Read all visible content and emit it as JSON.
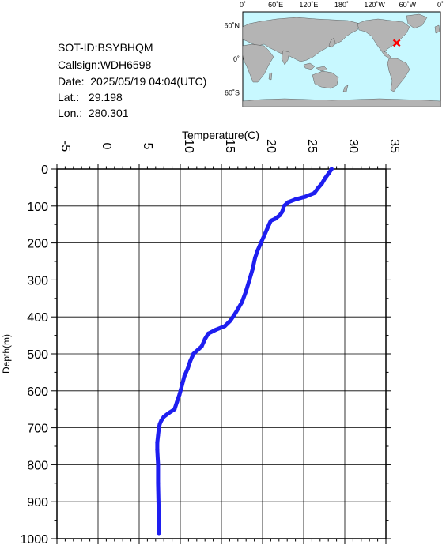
{
  "info": {
    "sot_id": "SOT-ID:BSYBHQM",
    "callsign": "Callsign:WDH6598",
    "date": "Date:  2025/05/19 04:04(UTC)",
    "lat": "Lat.:   29.198",
    "lon": "Lon.:  280.301"
  },
  "map": {
    "top_labels": [
      "0˚",
      "60˚E",
      "120˚E",
      "180˚",
      "120˚W",
      "60˚W",
      "0˚"
    ],
    "left_labels": [
      "60˚N",
      "0˚",
      "60˚S"
    ],
    "ocean_color": "#c8f8ff",
    "land_color": "#b4b4b4",
    "marker_color": "#ff0000",
    "marker": {
      "lon": 280.301,
      "lat": 29.198
    }
  },
  "chart_data": {
    "type": "line",
    "title": "",
    "xlabel": "Temperature(C)",
    "ylabel": "Depth(m)",
    "xlim": [
      -5,
      35
    ],
    "ylim": [
      0,
      1000
    ],
    "x_ticks": [
      -5,
      0,
      5,
      10,
      15,
      20,
      25,
      30,
      35
    ],
    "y_ticks": [
      0,
      100,
      200,
      300,
      400,
      500,
      600,
      700,
      800,
      900,
      1000
    ],
    "grid": true,
    "line_color": "#1e1ef0",
    "series": [
      {
        "name": "",
        "points": [
          [
            28.4,
            0
          ],
          [
            28.1,
            10
          ],
          [
            27.6,
            25
          ],
          [
            27.2,
            40
          ],
          [
            26.8,
            50
          ],
          [
            26.3,
            65
          ],
          [
            25.2,
            75
          ],
          [
            24.0,
            82
          ],
          [
            23.1,
            90
          ],
          [
            22.6,
            100
          ],
          [
            22.4,
            115
          ],
          [
            22.1,
            125
          ],
          [
            21.5,
            135
          ],
          [
            21.0,
            140
          ],
          [
            20.8,
            150
          ],
          [
            20.5,
            165
          ],
          [
            20.2,
            180
          ],
          [
            19.8,
            200
          ],
          [
            19.4,
            220
          ],
          [
            19.1,
            240
          ],
          [
            18.8,
            270
          ],
          [
            18.4,
            300
          ],
          [
            18.0,
            330
          ],
          [
            17.5,
            360
          ],
          [
            17.1,
            375
          ],
          [
            16.7,
            390
          ],
          [
            16.1,
            410
          ],
          [
            15.4,
            425
          ],
          [
            14.3,
            435
          ],
          [
            13.4,
            445
          ],
          [
            13.0,
            460
          ],
          [
            12.6,
            480
          ],
          [
            12.1,
            490
          ],
          [
            11.6,
            500
          ],
          [
            11.2,
            520
          ],
          [
            10.9,
            540
          ],
          [
            10.5,
            560
          ],
          [
            10.2,
            585
          ],
          [
            9.9,
            610
          ],
          [
            9.6,
            630
          ],
          [
            9.3,
            650
          ],
          [
            8.6,
            660
          ],
          [
            8.0,
            670
          ],
          [
            7.7,
            680
          ],
          [
            7.5,
            690
          ],
          [
            7.4,
            700
          ],
          [
            7.3,
            720
          ],
          [
            7.2,
            740
          ],
          [
            7.2,
            760
          ],
          [
            7.3,
            800
          ],
          [
            7.3,
            850
          ],
          [
            7.35,
            900
          ],
          [
            7.4,
            950
          ],
          [
            7.4,
            985
          ]
        ]
      }
    ]
  }
}
